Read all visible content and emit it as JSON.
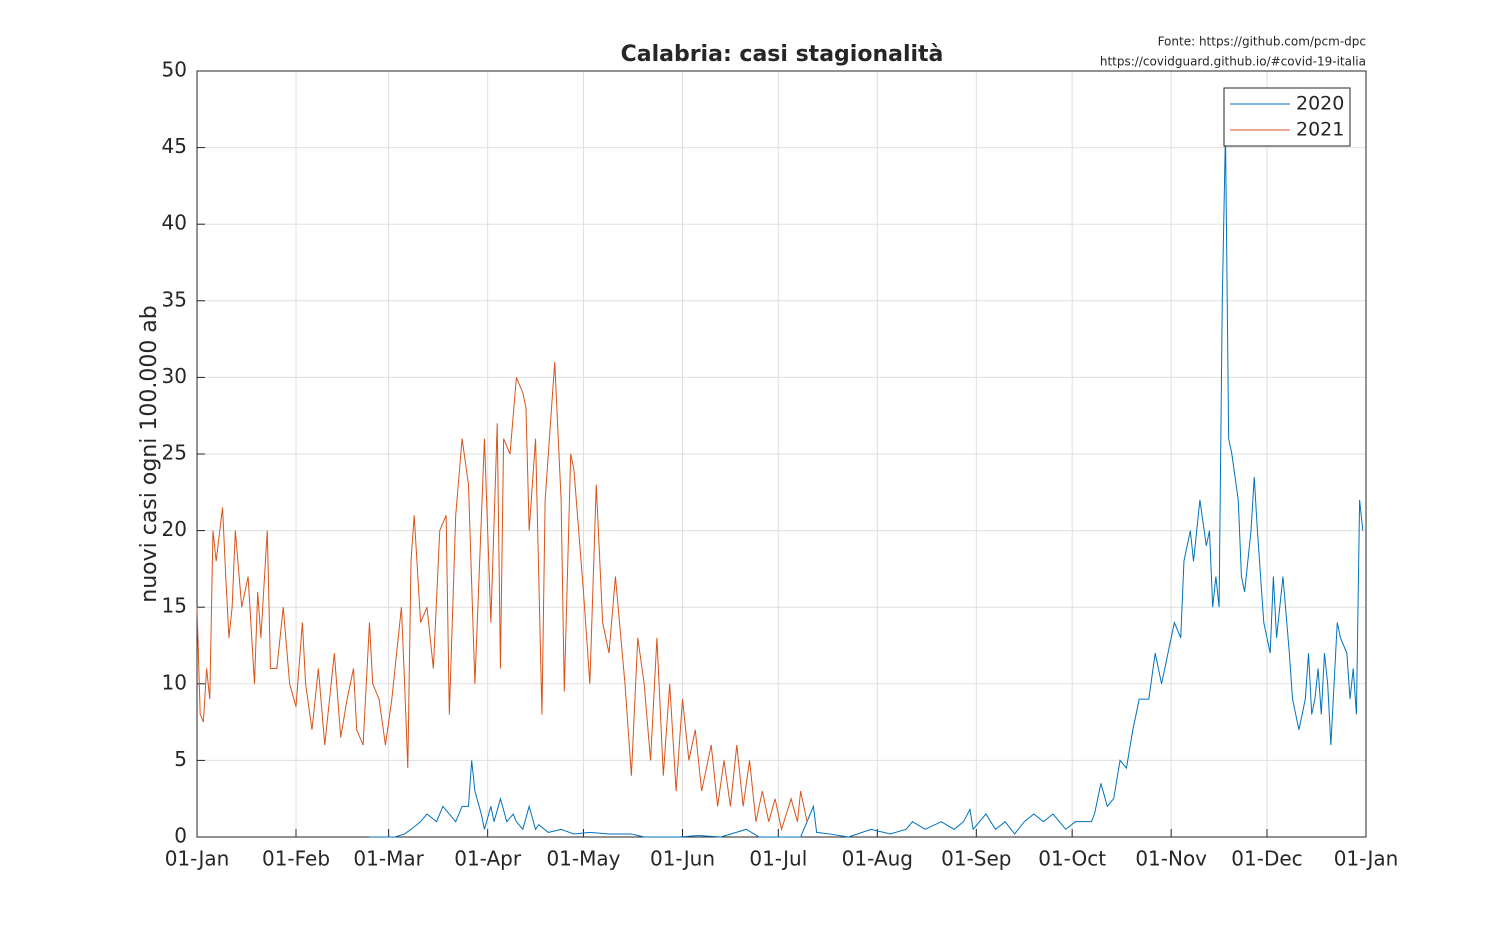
{
  "chart_data": {
    "type": "line",
    "title": "Calabria: casi stagionalità",
    "annotations": [
      "Fonte: https://github.com/pcm-dpc",
      "https://covidguard.github.io/#covid-19-italia"
    ],
    "ylabel": "nuovi casi ogni 100.000 ab",
    "xlim": [
      0,
      366
    ],
    "ylim": [
      0,
      50
    ],
    "xticks": [
      {
        "value": 0,
        "label": "01-Jan"
      },
      {
        "value": 31,
        "label": "01-Feb"
      },
      {
        "value": 60,
        "label": "01-Mar"
      },
      {
        "value": 91,
        "label": "01-Apr"
      },
      {
        "value": 121,
        "label": "01-May"
      },
      {
        "value": 152,
        "label": "01-Jun"
      },
      {
        "value": 182,
        "label": "01-Jul"
      },
      {
        "value": 213,
        "label": "01-Aug"
      },
      {
        "value": 244,
        "label": "01-Sep"
      },
      {
        "value": 274,
        "label": "01-Oct"
      },
      {
        "value": 305,
        "label": "01-Nov"
      },
      {
        "value": 335,
        "label": "01-Dec"
      },
      {
        "value": 366,
        "label": "01-Jan"
      }
    ],
    "yticks": [
      0,
      5,
      10,
      15,
      20,
      25,
      30,
      35,
      40,
      45,
      50
    ],
    "grid": true,
    "legend": "northeast",
    "series": [
      {
        "name": "2020",
        "color": "#0072bd",
        "x": [
          54,
          62,
          65,
          67,
          70,
          72,
          75,
          77,
          79,
          81,
          83,
          85,
          86,
          87,
          89,
          90,
          92,
          93,
          95,
          97,
          99,
          100,
          102,
          104,
          106,
          107,
          110,
          114,
          118,
          123,
          129,
          136,
          140,
          151,
          157,
          164,
          172,
          176,
          183,
          189,
          193,
          194,
          198,
          204,
          211,
          217,
          222,
          224,
          228,
          233,
          237,
          240,
          242,
          243,
          247,
          250,
          253,
          256,
          259,
          262,
          265,
          268,
          272,
          275,
          280,
          281,
          283,
          285,
          287,
          289,
          291,
          293,
          295,
          298,
          300,
          302,
          304,
          306,
          308,
          309,
          311,
          312,
          314,
          316,
          317,
          318,
          319,
          320,
          321,
          322,
          323,
          324,
          326,
          327,
          328,
          330,
          331,
          332,
          334,
          336,
          337,
          338,
          340,
          342,
          343,
          344,
          345,
          347,
          348,
          349,
          350,
          351,
          352,
          353,
          354,
          355,
          357,
          358,
          360,
          361,
          362,
          363,
          364,
          365
        ],
        "values": [
          0,
          0,
          0.2,
          0.5,
          1,
          1.5,
          1,
          2,
          1.5,
          1,
          2,
          2,
          5,
          3,
          1.5,
          0.5,
          2,
          1,
          2.5,
          1,
          1.5,
          1,
          0.5,
          2,
          0.5,
          0.8,
          0.3,
          0.5,
          0.2,
          0.3,
          0.2,
          0.2,
          0,
          0,
          0.1,
          0,
          0.5,
          0,
          0,
          0,
          2,
          0.3,
          0.2,
          0,
          0.5,
          0.2,
          0.5,
          1,
          0.5,
          1,
          0.5,
          1,
          1.8,
          0.5,
          1.5,
          0.5,
          1,
          0.2,
          1,
          1.5,
          1,
          1.5,
          0.5,
          1,
          1,
          1.5,
          3.5,
          2,
          2.5,
          5,
          4.5,
          7,
          9,
          9,
          12,
          10,
          12,
          14,
          13,
          18,
          20,
          18,
          22,
          19,
          20,
          15,
          17,
          15,
          35,
          46,
          26,
          25,
          22,
          17,
          16,
          20,
          23.5,
          20,
          14,
          12,
          17,
          13,
          17,
          12,
          9,
          8,
          7,
          9,
          12,
          8,
          9,
          11,
          8,
          12,
          10,
          6,
          14,
          13,
          12,
          9,
          11,
          8,
          22,
          20
        ]
      },
      {
        "name": "2021",
        "color": "#d95319",
        "x": [
          0,
          1,
          2,
          3,
          4,
          5,
          6,
          8,
          9,
          10,
          11,
          12,
          14,
          16,
          18,
          19,
          20,
          22,
          23,
          25,
          27,
          29,
          31,
          33,
          34,
          36,
          38,
          40,
          43,
          45,
          47,
          49,
          50,
          52,
          54,
          55,
          57,
          59,
          61,
          62,
          64,
          65,
          66,
          67,
          68,
          70,
          72,
          74,
          76,
          78,
          79,
          81,
          83,
          85,
          87,
          90,
          92,
          94,
          95,
          96,
          98,
          100,
          102,
          103,
          104,
          106,
          108,
          109,
          112,
          114,
          115,
          117,
          118,
          121,
          123,
          125,
          127,
          129,
          131,
          134,
          136,
          138,
          140,
          142,
          144,
          146,
          148,
          150,
          152,
          154,
          156,
          158,
          161,
          163,
          165,
          167,
          169,
          171,
          173,
          175,
          177,
          179,
          181,
          183,
          186,
          188,
          189,
          191
        ],
        "values": [
          15,
          8,
          7.5,
          11,
          9,
          20,
          18,
          21.5,
          17,
          13,
          15,
          20,
          15,
          17,
          10,
          16,
          13,
          20,
          11,
          11,
          15,
          10,
          8.5,
          14,
          10,
          7,
          11,
          6,
          12,
          6.5,
          9,
          11,
          7,
          6,
          14,
          10,
          9,
          6,
          9,
          11,
          15,
          10,
          4.5,
          18,
          21,
          14,
          15,
          11,
          20,
          21,
          8,
          21,
          26,
          23,
          10,
          26,
          14,
          27,
          11,
          26,
          25,
          30,
          29,
          28,
          20,
          26,
          8,
          22,
          31,
          22,
          9.5,
          25,
          24,
          16,
          10,
          23,
          14,
          12,
          17,
          10,
          4,
          13,
          10,
          5,
          13,
          4,
          10,
          3,
          9,
          5,
          7,
          3,
          6,
          2,
          5,
          2,
          6,
          2,
          5,
          1,
          3,
          1,
          2.5,
          0.5,
          2.5,
          1,
          3,
          1
        ]
      }
    ]
  }
}
